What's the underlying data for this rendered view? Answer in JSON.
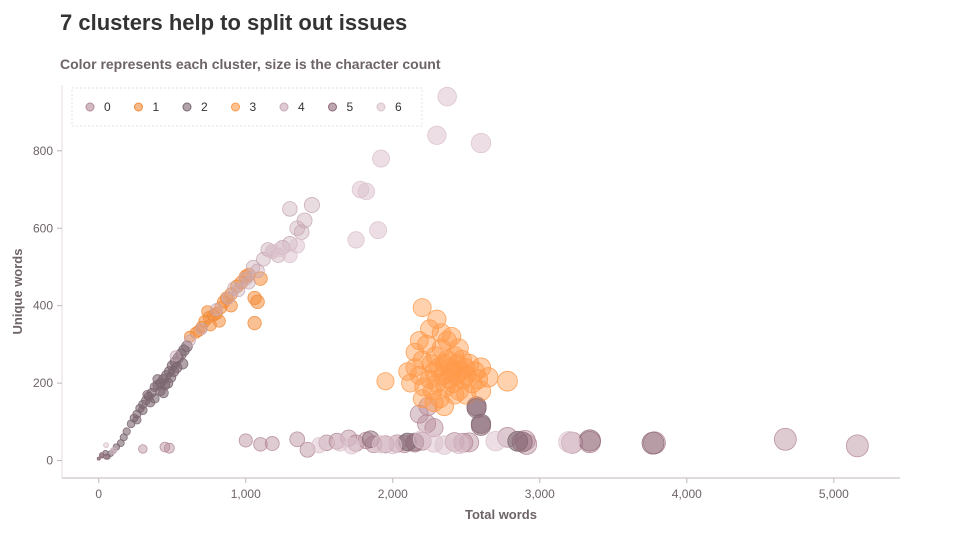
{
  "chart_data": {
    "type": "scatter",
    "title": "7 clusters help to split out issues",
    "subtitle": "Color represents each cluster, size is the character count",
    "xlabel": "Total words",
    "ylabel": "Unique words",
    "xlim": [
      -250,
      5450
    ],
    "ylim": [
      -45,
      970
    ],
    "x_ticks": [
      0,
      1000,
      2000,
      3000,
      4000,
      5000
    ],
    "x_tick_labels": [
      "0",
      "1,000",
      "2,000",
      "3,000",
      "4,000",
      "5,000"
    ],
    "y_ticks": [
      0,
      200,
      400,
      600,
      800
    ],
    "y_tick_labels": [
      "0",
      "200",
      "400",
      "600",
      "800"
    ],
    "legend_position": "top-left",
    "size_encoding": "character count",
    "series": [
      {
        "name": "0",
        "color": "#b58a98",
        "opacity": 0.45,
        "points": [
          [
            300,
            30
          ],
          [
            450,
            35
          ],
          [
            480,
            32
          ],
          [
            1000,
            52
          ],
          [
            1100,
            42
          ],
          [
            1180,
            44
          ],
          [
            1350,
            55
          ],
          [
            1420,
            28
          ],
          [
            1550,
            46
          ],
          [
            1620,
            50
          ],
          [
            1700,
            58
          ],
          [
            1750,
            45
          ],
          [
            1820,
            52
          ],
          [
            1870,
            42
          ],
          [
            1950,
            42
          ],
          [
            2030,
            44
          ],
          [
            2080,
            43
          ],
          [
            2150,
            45
          ],
          [
            2200,
            50
          ],
          [
            2420,
            48
          ],
          [
            2480,
            46
          ],
          [
            2520,
            47
          ],
          [
            2780,
            60
          ],
          [
            2900,
            52
          ],
          [
            2910,
            42
          ],
          [
            3220,
            46
          ],
          [
            3340,
            48
          ],
          [
            3780,
            46
          ],
          [
            4670,
            55
          ],
          [
            5160,
            38
          ],
          [
            2180,
            120
          ],
          [
            2230,
            95
          ],
          [
            2280,
            85
          ],
          [
            2240,
            140
          ]
        ]
      },
      {
        "name": "1",
        "color": "#f28c3a",
        "opacity": 0.55,
        "points": [
          [
            620,
            320
          ],
          [
            660,
            330
          ],
          [
            700,
            345
          ],
          [
            720,
            360
          ],
          [
            750,
            370
          ],
          [
            780,
            375
          ],
          [
            800,
            380
          ],
          [
            830,
            395
          ],
          [
            850,
            410
          ],
          [
            870,
            420
          ],
          [
            900,
            430
          ],
          [
            940,
            450
          ],
          [
            970,
            460
          ],
          [
            1000,
            475
          ],
          [
            1020,
            480
          ],
          [
            1060,
            420
          ],
          [
            1080,
            410
          ],
          [
            1060,
            355
          ],
          [
            820,
            360
          ],
          [
            760,
            350
          ],
          [
            680,
            335
          ],
          [
            900,
            400
          ],
          [
            740,
            385
          ],
          [
            1100,
            470
          ]
        ]
      },
      {
        "name": "2",
        "color": "#7b6670",
        "opacity": 0.6,
        "points": [
          [
            20,
            12
          ],
          [
            45,
            20
          ],
          [
            60,
            10
          ],
          [
            80,
            18
          ],
          [
            100,
            25
          ],
          [
            120,
            35
          ],
          [
            150,
            45
          ],
          [
            170,
            60
          ],
          [
            190,
            75
          ],
          [
            220,
            95
          ],
          [
            240,
            110
          ],
          [
            260,
            120
          ],
          [
            280,
            135
          ],
          [
            300,
            145
          ],
          [
            320,
            155
          ],
          [
            340,
            165
          ],
          [
            360,
            175
          ],
          [
            380,
            190
          ],
          [
            400,
            195
          ],
          [
            420,
            200
          ],
          [
            440,
            210
          ],
          [
            460,
            220
          ],
          [
            480,
            230
          ],
          [
            500,
            245
          ],
          [
            520,
            255
          ],
          [
            540,
            265
          ],
          [
            560,
            275
          ],
          [
            580,
            285
          ],
          [
            600,
            295
          ],
          [
            380,
            160
          ],
          [
            420,
            180
          ],
          [
            470,
            200
          ],
          [
            510,
            230
          ],
          [
            440,
            175
          ],
          [
            350,
            150
          ],
          [
            530,
            240
          ],
          [
            300,
            130
          ],
          [
            260,
            105
          ],
          [
            450,
            195
          ],
          [
            570,
            250
          ],
          [
            400,
            210
          ],
          [
            490,
            215
          ],
          [
            330,
            170
          ],
          [
            2600,
            95
          ],
          [
            2570,
            140
          ],
          [
            2100,
            48
          ],
          [
            2850,
            50
          ],
          [
            0,
            5
          ]
        ]
      },
      {
        "name": "3",
        "color": "#ff9a4a",
        "opacity": 0.45,
        "points": [
          [
            2150,
            240
          ],
          [
            2180,
            220
          ],
          [
            2200,
            260
          ],
          [
            2210,
            190
          ],
          [
            2230,
            300
          ],
          [
            2250,
            210
          ],
          [
            2260,
            250
          ],
          [
            2270,
            180
          ],
          [
            2280,
            230
          ],
          [
            2290,
            270
          ],
          [
            2300,
            200
          ],
          [
            2310,
            240
          ],
          [
            2320,
            160
          ],
          [
            2330,
            290
          ],
          [
            2340,
            220
          ],
          [
            2350,
            250
          ],
          [
            2360,
            190
          ],
          [
            2370,
            260
          ],
          [
            2380,
            210
          ],
          [
            2390,
            240
          ],
          [
            2400,
            230
          ],
          [
            2410,
            200
          ],
          [
            2420,
            270
          ],
          [
            2430,
            220
          ],
          [
            2440,
            250
          ],
          [
            2450,
            180
          ],
          [
            2460,
            230
          ],
          [
            2470,
            260
          ],
          [
            2480,
            210
          ],
          [
            2490,
            240
          ],
          [
            2500,
            220
          ],
          [
            2520,
            250
          ],
          [
            2540,
            200
          ],
          [
            2560,
            230
          ],
          [
            2580,
            210
          ],
          [
            2600,
            240
          ],
          [
            2250,
            340
          ],
          [
            2300,
            365
          ],
          [
            2200,
            395
          ],
          [
            2180,
            310
          ],
          [
            2330,
            330
          ],
          [
            1950,
            205
          ],
          [
            2780,
            205
          ],
          [
            2650,
            215
          ],
          [
            2100,
            230
          ],
          [
            2120,
            200
          ],
          [
            2600,
            180
          ],
          [
            2400,
            320
          ],
          [
            2280,
            150
          ],
          [
            2350,
            140
          ],
          [
            2200,
            160
          ],
          [
            2450,
            290
          ],
          [
            2500,
            170
          ],
          [
            2150,
            280
          ],
          [
            2370,
            310
          ],
          [
            2420,
            170
          ]
        ]
      },
      {
        "name": "4",
        "color": "#c7a7b4",
        "opacity": 0.4,
        "points": [
          [
            520,
            270
          ],
          [
            620,
            310
          ],
          [
            700,
            340
          ],
          [
            800,
            390
          ],
          [
            880,
            420
          ],
          [
            950,
            440
          ],
          [
            1000,
            470
          ],
          [
            1050,
            500
          ],
          [
            1120,
            520
          ],
          [
            1180,
            540
          ],
          [
            1250,
            550
          ],
          [
            1300,
            560
          ],
          [
            1350,
            600
          ],
          [
            1400,
            620
          ],
          [
            1300,
            650
          ],
          [
            1450,
            660
          ],
          [
            1150,
            545
          ],
          [
            1220,
            530
          ],
          [
            1380,
            590
          ],
          [
            1080,
            490
          ],
          [
            1020,
            460
          ],
          [
            920,
            445
          ]
        ]
      },
      {
        "name": "5",
        "color": "#8f6b79",
        "opacity": 0.5,
        "points": [
          [
            0,
            5
          ],
          [
            20,
            15
          ],
          [
            50,
            10
          ],
          [
            2600,
            90
          ],
          [
            2570,
            135
          ],
          [
            1850,
            55
          ],
          [
            2150,
            48
          ],
          [
            3340,
            52
          ],
          [
            3770,
            45
          ],
          [
            2880,
            48
          ]
        ]
      },
      {
        "name": "6",
        "color": "#dcc3cd",
        "opacity": 0.55,
        "points": [
          [
            50,
            40
          ],
          [
            100,
            25
          ],
          [
            2370,
            940
          ],
          [
            2300,
            840
          ],
          [
            2600,
            820
          ],
          [
            1920,
            780
          ],
          [
            1780,
            700
          ],
          [
            1820,
            695
          ],
          [
            1900,
            595
          ],
          [
            1750,
            570
          ],
          [
            1180,
            540
          ],
          [
            1230,
            545
          ],
          [
            1300,
            530
          ],
          [
            1350,
            555
          ],
          [
            1500,
            40
          ],
          [
            1640,
            45
          ],
          [
            2000,
            40
          ],
          [
            2280,
            45
          ],
          [
            2350,
            40
          ],
          [
            2450,
            42
          ],
          [
            2200,
            55
          ],
          [
            2700,
            50
          ],
          [
            3200,
            48
          ],
          [
            1920,
            42
          ],
          [
            1720,
            38
          ]
        ]
      }
    ]
  }
}
